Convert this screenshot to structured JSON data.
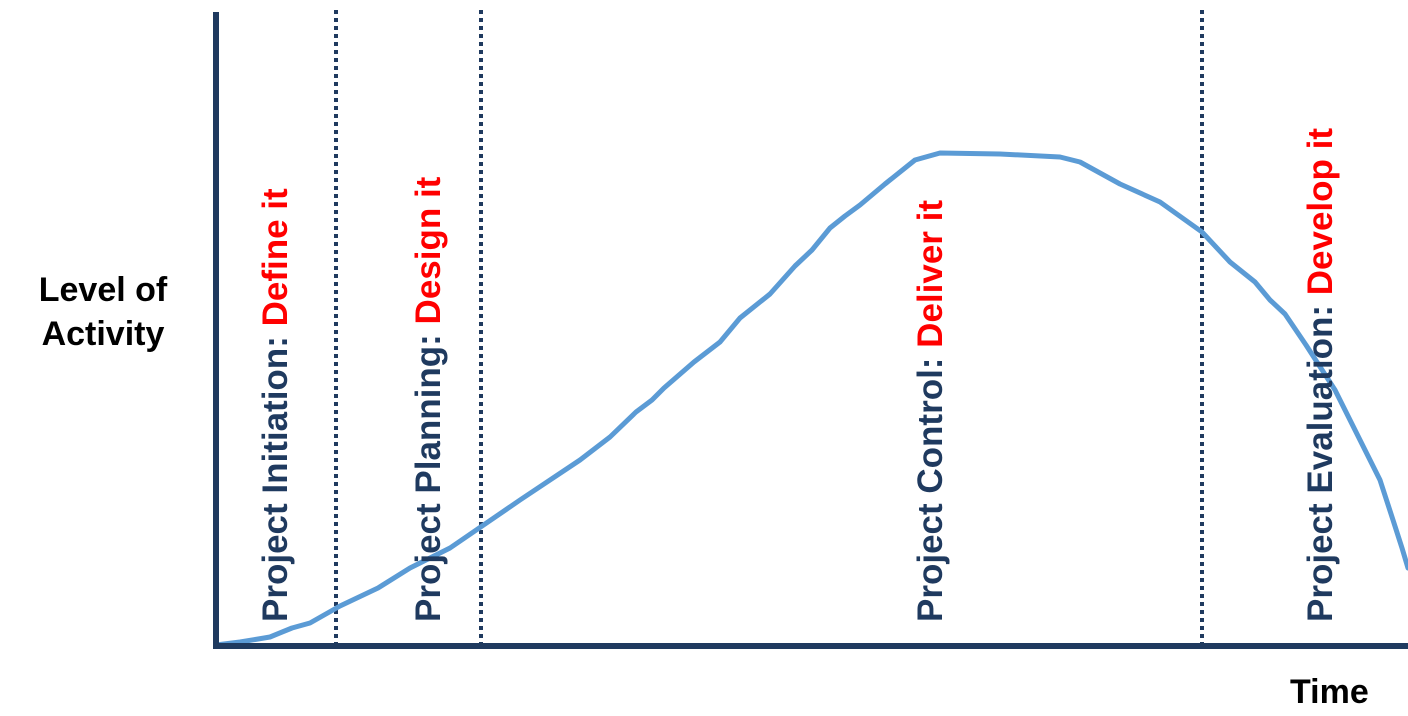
{
  "axes": {
    "y_label_line1": "Level of",
    "y_label_line2": "Activity",
    "x_label": "Time"
  },
  "phases": [
    {
      "prefix": "Project Initiation: ",
      "action": "Define it"
    },
    {
      "prefix": "Project Planning: ",
      "action": "Design it"
    },
    {
      "prefix": "Project Control: ",
      "action": "Deliver it"
    },
    {
      "prefix": "Project Evaluation: ",
      "action": "Develop it"
    }
  ],
  "colors": {
    "axis": "#1f3a5f",
    "divider": "#1f3a5f",
    "phase_prefix": "#1f3a5f",
    "phase_action": "#ff0000",
    "curve": "#5b9bd5"
  }
}
